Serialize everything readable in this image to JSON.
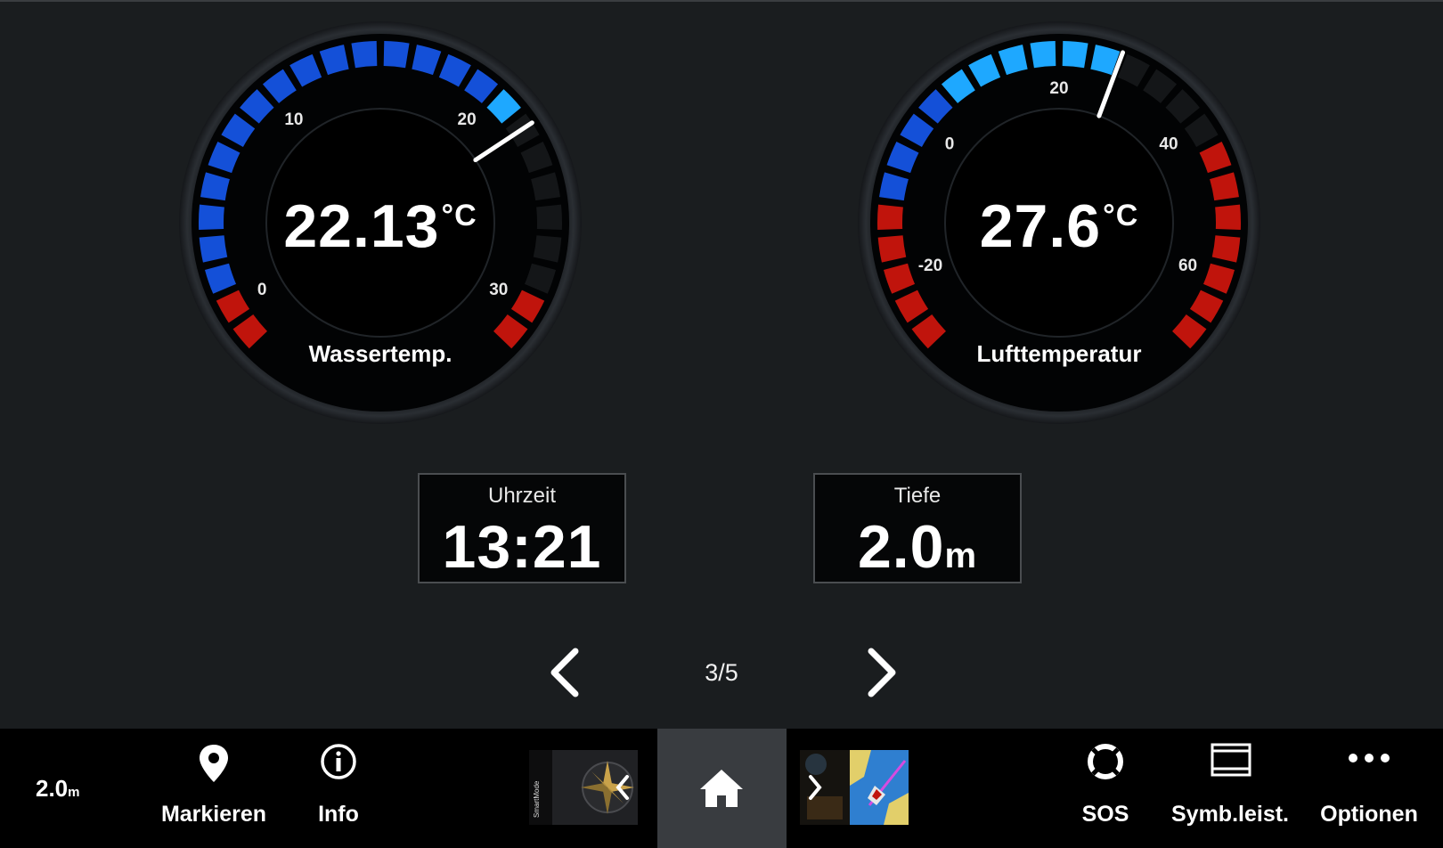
{
  "gauges": {
    "water": {
      "label": "Wassertemp.",
      "value": "22.13",
      "unit": "°C",
      "min": -2,
      "max": 32,
      "reading": 22.13,
      "ticks": [
        "0",
        "10",
        "20",
        "30"
      ]
    },
    "air": {
      "label": "Lufttemperatur",
      "value": "27.6",
      "unit": "°C",
      "min": -30,
      "max": 70,
      "reading": 27.6,
      "ticks": [
        "-20",
        "0",
        "20",
        "40",
        "60"
      ]
    }
  },
  "tiles": {
    "time": {
      "label": "Uhrzeit",
      "value": "13:21"
    },
    "depth": {
      "label": "Tiefe",
      "value": "2.0",
      "unit": "m"
    }
  },
  "pager": {
    "label": "3/5"
  },
  "bottombar": {
    "depth_value": "2.0",
    "depth_unit": "m",
    "mark_label": "Markieren",
    "info_label": "Info",
    "sos_label": "SOS",
    "toolbar_label": "Symb.leist.",
    "options_label": "Optionen",
    "smartmode_text": "SmartMode"
  },
  "colors": {
    "blue_dark": "#1450d8",
    "blue_light": "#1ea8ff",
    "red": "#c0140c",
    "background": "#1a1d1f"
  }
}
